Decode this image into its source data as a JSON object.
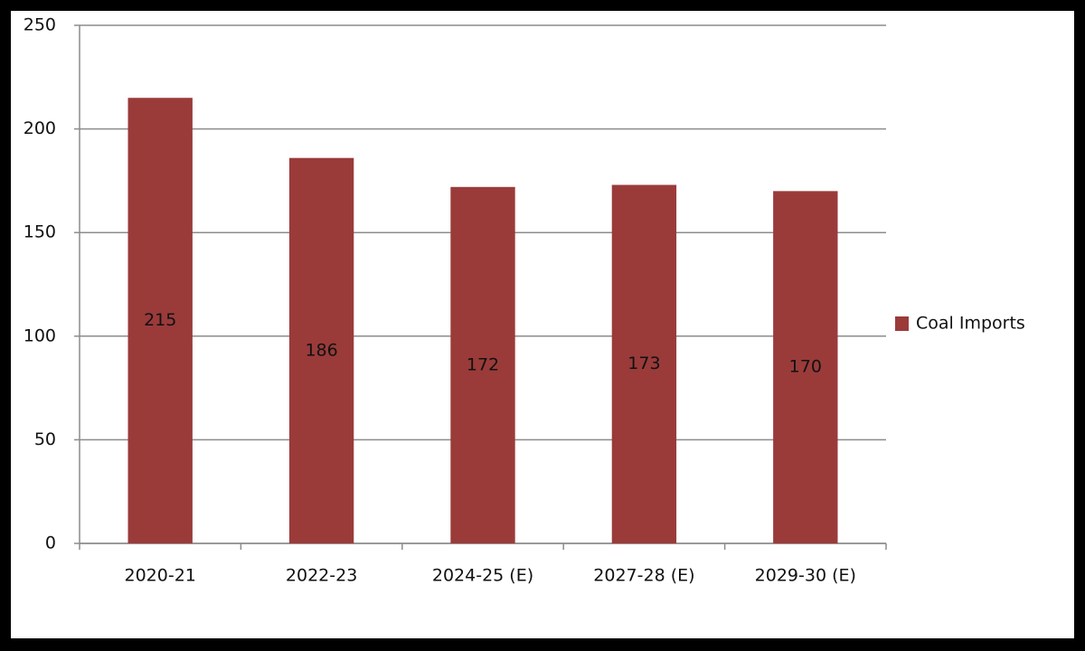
{
  "chart_data": {
    "type": "bar",
    "categories": [
      "2020-21",
      "2022-23",
      "2024-25 (E)",
      "2027-28 (E)",
      "2029-30 (E)"
    ],
    "series": [
      {
        "name": "Coal Imports",
        "color": "#9a3b3a",
        "values": [
          215,
          186,
          172,
          173,
          170
        ]
      }
    ],
    "ylim": [
      0,
      250
    ],
    "yticks": [
      0,
      50,
      100,
      150,
      200,
      250
    ],
    "grid": true,
    "legend": "right",
    "data_labels": true
  }
}
